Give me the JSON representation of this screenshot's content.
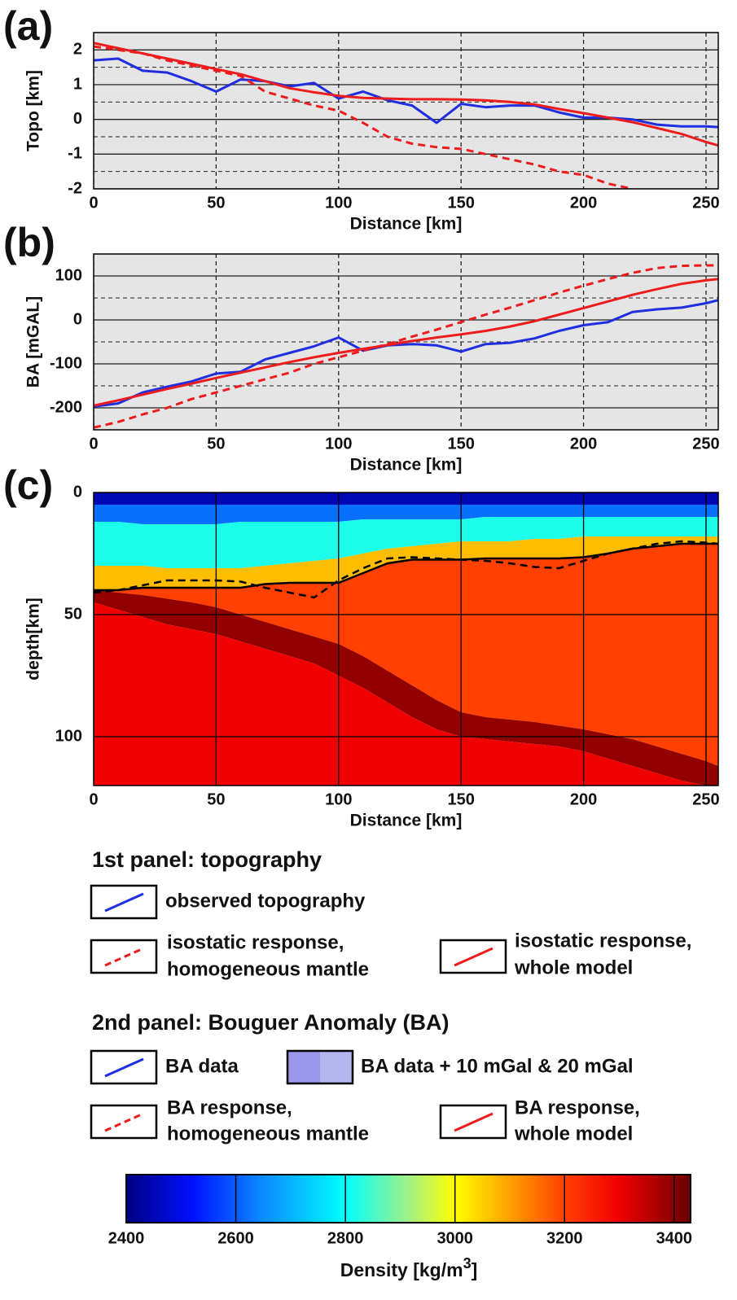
{
  "chart_data": [
    {
      "type": "line",
      "panel_label": "(a)",
      "ylabel": "Topo [km]",
      "xlabel": "Distance [km]",
      "xlim": [
        0,
        255
      ],
      "ylim": [
        -2,
        2.5
      ],
      "xticks": [
        0,
        50,
        100,
        150,
        200,
        250
      ],
      "yticks": [
        -2,
        -1,
        0,
        1,
        2
      ],
      "y_minor_gridlines": [
        -1.5,
        -0.5,
        0.5,
        1.5
      ],
      "x_grid_style": "dashed",
      "y_grid_style": "solid",
      "background": "#e5e5e5",
      "x": [
        0,
        10,
        20,
        30,
        40,
        50,
        60,
        70,
        80,
        90,
        100,
        110,
        120,
        130,
        140,
        150,
        160,
        170,
        180,
        190,
        200,
        210,
        220,
        230,
        240,
        250,
        255
      ],
      "series": [
        {
          "color": "#1f2fe0",
          "dash": false,
          "values": [
            1.7,
            1.75,
            1.4,
            1.35,
            1.1,
            0.8,
            1.15,
            1.1,
            0.95,
            1.05,
            0.6,
            0.8,
            0.55,
            0.4,
            -0.1,
            0.45,
            0.35,
            0.4,
            0.4,
            0.2,
            0.05,
            0.05,
            0,
            -0.15,
            -0.2,
            -0.2,
            -0.22
          ]
        },
        {
          "color": "#ee1c1c",
          "dash": true,
          "values": [
            2.1,
            2.0,
            1.9,
            1.7,
            1.55,
            1.4,
            1.25,
            0.8,
            0.6,
            0.4,
            0.25,
            -0.1,
            -0.5,
            -0.7,
            -0.8,
            -0.85,
            -1.0,
            -1.15,
            -1.3,
            -1.5,
            -1.6,
            -1.85,
            -2.0,
            null,
            null,
            null,
            null
          ]
        },
        {
          "color": "#ee1c1c",
          "dash": false,
          "values": [
            2.2,
            2.05,
            1.9,
            1.75,
            1.6,
            1.45,
            1.3,
            1.1,
            0.9,
            0.78,
            0.68,
            0.62,
            0.6,
            0.58,
            0.58,
            0.57,
            0.55,
            0.5,
            0.43,
            0.3,
            0.18,
            0.05,
            -0.08,
            -0.25,
            -0.42,
            -0.65,
            -0.75
          ]
        }
      ]
    },
    {
      "type": "line",
      "panel_label": "(b)",
      "ylabel": "BA [mGAL]",
      "xlabel": "Distance [km]",
      "xlim": [
        0,
        255
      ],
      "ylim": [
        -250,
        150
      ],
      "xticks": [
        0,
        50,
        100,
        150,
        200,
        250
      ],
      "yticks": [
        -200,
        -100,
        0,
        100
      ],
      "y_minor_gridlines": [
        -150,
        -50,
        50
      ],
      "x_grid_style": "dashed",
      "y_grid_style": "solid",
      "background": "#e5e5e5",
      "x": [
        0,
        10,
        20,
        30,
        40,
        50,
        60,
        70,
        80,
        90,
        100,
        110,
        120,
        130,
        140,
        150,
        160,
        170,
        180,
        190,
        200,
        210,
        220,
        230,
        240,
        250,
        255
      ],
      "series": [
        {
          "color": "#1f2fe0",
          "dash": false,
          "values": [
            -197,
            -190,
            -165,
            -152,
            -140,
            -122,
            -118,
            -90,
            -75,
            -60,
            -40,
            -70,
            -58,
            -55,
            -58,
            -72,
            -55,
            -52,
            -42,
            -25,
            -12,
            -5,
            18,
            24,
            28,
            38,
            45
          ]
        },
        {
          "color": "#ee1c1c",
          "dash": true,
          "values": [
            -245,
            -232,
            -215,
            -200,
            -180,
            -165,
            -150,
            -135,
            -120,
            -100,
            -85,
            -70,
            -55,
            -38,
            -22,
            -5,
            12,
            28,
            45,
            62,
            78,
            93,
            107,
            118,
            123,
            124,
            124
          ]
        },
        {
          "color": "#ee1c1c",
          "dash": false,
          "values": [
            -195,
            -183,
            -170,
            -157,
            -145,
            -132,
            -120,
            -108,
            -96,
            -85,
            -75,
            -66,
            -57,
            -48,
            -40,
            -33,
            -25,
            -15,
            -3,
            12,
            27,
            42,
            57,
            70,
            82,
            90,
            93
          ]
        }
      ]
    },
    {
      "type": "section",
      "panel_label": "(c)",
      "ylabel": "depth[km]",
      "xlabel": "Distance [km]",
      "xlim": [
        0,
        255
      ],
      "ylim": [
        0,
        120
      ],
      "y_inverted": true,
      "xticks": [
        0,
        50,
        100,
        150,
        200,
        250
      ],
      "yticks": [
        0,
        50,
        100
      ],
      "x_grid_style": "solid",
      "y_grid_style": "solid",
      "x": [
        0,
        10,
        20,
        30,
        40,
        50,
        60,
        70,
        80,
        90,
        100,
        110,
        120,
        130,
        140,
        150,
        160,
        170,
        180,
        190,
        200,
        210,
        220,
        230,
        240,
        250,
        255
      ],
      "layers": [
        {
          "density": 2450,
          "bottom": [
            5,
            5,
            5,
            5,
            5,
            5,
            5,
            5,
            5,
            5,
            5,
            5,
            5,
            5,
            5,
            5,
            5,
            5,
            5,
            5,
            5,
            5,
            5,
            5,
            5,
            5,
            5
          ]
        },
        {
          "density": 2620,
          "bottom": [
            12,
            12,
            13,
            13,
            13,
            13,
            12,
            12,
            12,
            12,
            12,
            11,
            11,
            11,
            11,
            11,
            10,
            10,
            10,
            10,
            10,
            10,
            10,
            10,
            10,
            10,
            10
          ]
        },
        {
          "density": 2820,
          "bottom": [
            30,
            30,
            30,
            31,
            31,
            31,
            31,
            30,
            29,
            28,
            27,
            25,
            23,
            22,
            21,
            20,
            20,
            20,
            19,
            19,
            18,
            18,
            18,
            18,
            18,
            18,
            18
          ]
        },
        {
          "density": 3070,
          "bottom": [
            40,
            40,
            39,
            39,
            39,
            39,
            39,
            37.5,
            37,
            37,
            37,
            33,
            29,
            27.5,
            27.5,
            27.5,
            27,
            27,
            27,
            27,
            26.5,
            25,
            23,
            22,
            21,
            21,
            21
          ]
        },
        {
          "density": 3200,
          "bottom": [
            40,
            41,
            42,
            43.5,
            45,
            47,
            50,
            53,
            56,
            59,
            62,
            67,
            73,
            79,
            85,
            90,
            92,
            93,
            94,
            95.5,
            97,
            99,
            101,
            104,
            107,
            110,
            112
          ]
        },
        {
          "density": 3390,
          "bottom": [
            45,
            48,
            51,
            54,
            56,
            58,
            61,
            64,
            67,
            70,
            75,
            80,
            86,
            92,
            97,
            100,
            101,
            102,
            103,
            104,
            106,
            109,
            112,
            115,
            118,
            120,
            120
          ]
        },
        {
          "density": 3300
        }
      ],
      "series": [
        {
          "color": "#000000",
          "dash": false,
          "values": [
            40,
            40,
            39,
            39,
            39,
            39,
            39,
            37.5,
            37,
            37,
            37,
            33,
            29,
            27.5,
            27.5,
            27.5,
            27,
            27,
            27,
            27,
            26.5,
            25,
            23,
            22,
            21,
            21,
            21
          ]
        },
        {
          "color": "#000000",
          "dash": true,
          "values": [
            41,
            40,
            38,
            36,
            36,
            36,
            36.5,
            39,
            41,
            43,
            36,
            31,
            27,
            26.5,
            27,
            27.5,
            28,
            29,
            30.5,
            31,
            28,
            25,
            23,
            21,
            20,
            20.5,
            21
          ]
        }
      ]
    }
  ],
  "legend": {
    "sections": [
      {
        "title": "1st panel: topography",
        "items": [
          {
            "text": [
              "observed topography"
            ]
          },
          {
            "text": [
              "isostatic response,",
              "homogeneous mantle"
            ]
          },
          {
            "text": [
              "isostatic response,",
              "whole model"
            ]
          }
        ]
      },
      {
        "title": "2nd panel: Bouguer Anomaly (BA)",
        "items": [
          {
            "text": [
              "BA data"
            ]
          },
          {
            "text": [
              "BA data + 10 mGal & 20 mGal"
            ]
          },
          {
            "text": [
              "BA response,",
              "homogeneous mantle"
            ]
          },
          {
            "text": [
              "BA response,",
              "whole model"
            ]
          }
        ]
      }
    ]
  },
  "colorbar": {
    "label": "Density [kg/m",
    "label_superscript": "3",
    "label_end": "]",
    "clim": [
      2400,
      3430
    ],
    "ticks": [
      2400,
      2600,
      2800,
      3000,
      3200,
      3400
    ],
    "stops": [
      {
        "value": 2400,
        "color": "#000080"
      },
      {
        "value": 2520,
        "color": "#0010ff"
      },
      {
        "value": 2650,
        "color": "#0a8cff"
      },
      {
        "value": 2800,
        "color": "#00ffff"
      },
      {
        "value": 2920,
        "color": "#a8f080"
      },
      {
        "value": 3000,
        "color": "#ffff00"
      },
      {
        "value": 3100,
        "color": "#ffa000"
      },
      {
        "value": 3200,
        "color": "#ff4000"
      },
      {
        "value": 3300,
        "color": "#f00000"
      },
      {
        "value": 3430,
        "color": "#6a0000"
      }
    ]
  }
}
